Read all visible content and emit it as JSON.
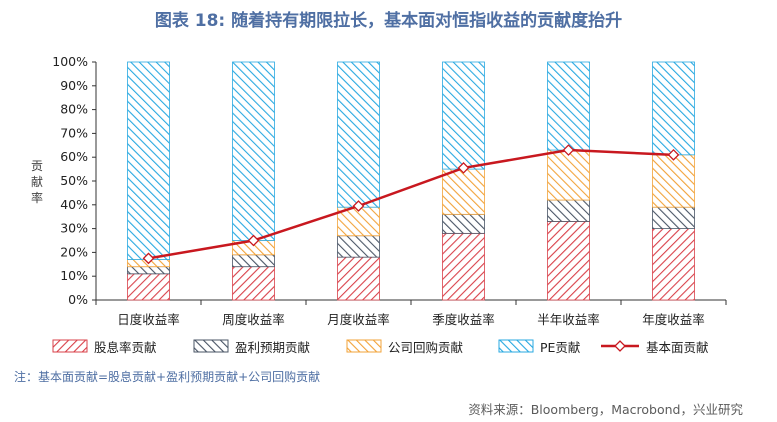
{
  "title": "图表 18: 随着持有期限拉长，基本面对恒指收益的贡献度抬升",
  "note": "注：基本面贡献=股息贡献+盈利预期贡献+公司回购贡献",
  "source": "资料来源：Bloomberg，Macrobond，兴业研究",
  "colors": {
    "dividend": "#d9414a",
    "earnings": "#4a5566",
    "buyback": "#f2a33a",
    "pe": "#29a9e1",
    "fundamental_line": "#c8181f"
  },
  "chart_data": {
    "type": "bar",
    "stacked": true,
    "categories": [
      "日度收益率",
      "周度收益率",
      "月度收益率",
      "季度收益率",
      "半年收益率",
      "年度收益率"
    ],
    "ylabel": "贡献率",
    "ylim": [
      0,
      100
    ],
    "yticks": [
      "0%",
      "10%",
      "20%",
      "30%",
      "40%",
      "50%",
      "60%",
      "70%",
      "80%",
      "90%",
      "100%"
    ],
    "legend_position": "bottom",
    "series": [
      {
        "name": "股息率贡献",
        "type": "bar",
        "values": [
          11,
          14,
          18,
          28,
          33,
          30
        ]
      },
      {
        "name": "盈利预期贡献",
        "type": "bar",
        "values": [
          3,
          5,
          9,
          8,
          9,
          9
        ]
      },
      {
        "name": "公司回购贡献",
        "type": "bar",
        "values": [
          3,
          6,
          12,
          19,
          21,
          22
        ]
      },
      {
        "name": "PE贡献",
        "type": "bar",
        "values": [
          83,
          75,
          61,
          45,
          37,
          39
        ]
      },
      {
        "name": "基本面贡献",
        "type": "line",
        "values": [
          17.5,
          25,
          39.5,
          55.5,
          63,
          61
        ]
      }
    ]
  }
}
